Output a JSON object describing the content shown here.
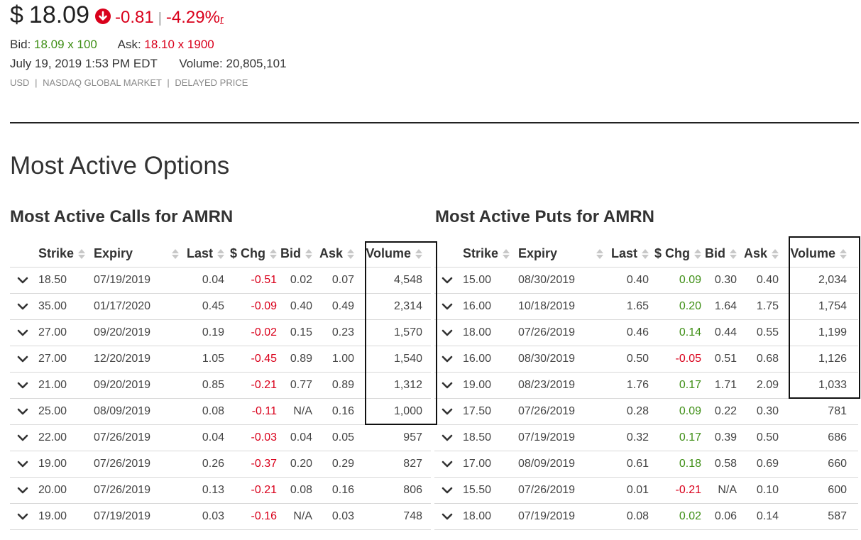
{
  "quote": {
    "currency_symbol": "$",
    "price": "18.09",
    "change": "-0.81",
    "separator": "|",
    "change_pct": "-4.29%",
    "pct_marker": "r",
    "bid_label": "Bid:",
    "bid_value": "18.09 x 100",
    "ask_label": "Ask:",
    "ask_value": "18.10 x 1900",
    "datetime": "July 19, 2019 1:53 PM EDT",
    "volume_label": "Volume:",
    "volume_value": "20,805,101",
    "meta": [
      "USD",
      "NASDAQ GLOBAL MARKET",
      "DELAYED PRICE"
    ],
    "meta_separator": "|"
  },
  "section_title": "Most Active Options",
  "columns": {
    "strike": "Strike",
    "expiry": "Expiry",
    "last": "Last",
    "chg": "$ Chg",
    "bid": "Bid",
    "ask": "Ask",
    "volume": "Volume"
  },
  "calls": {
    "title": "Most Active Calls for AMRN",
    "rows": [
      {
        "strike": "18.50",
        "expiry": "07/19/2019",
        "last": "0.04",
        "chg": "-0.51",
        "bid": "0.02",
        "ask": "0.07",
        "volume": "4,548"
      },
      {
        "strike": "35.00",
        "expiry": "01/17/2020",
        "last": "0.45",
        "chg": "-0.09",
        "bid": "0.40",
        "ask": "0.49",
        "volume": "2,314"
      },
      {
        "strike": "27.00",
        "expiry": "09/20/2019",
        "last": "0.19",
        "chg": "-0.02",
        "bid": "0.15",
        "ask": "0.23",
        "volume": "1,570"
      },
      {
        "strike": "27.00",
        "expiry": "12/20/2019",
        "last": "1.05",
        "chg": "-0.45",
        "bid": "0.89",
        "ask": "1.00",
        "volume": "1,540"
      },
      {
        "strike": "21.00",
        "expiry": "09/20/2019",
        "last": "0.85",
        "chg": "-0.21",
        "bid": "0.77",
        "ask": "0.89",
        "volume": "1,312"
      },
      {
        "strike": "25.00",
        "expiry": "08/09/2019",
        "last": "0.08",
        "chg": "-0.11",
        "bid": "N/A",
        "ask": "0.16",
        "volume": "1,000"
      },
      {
        "strike": "22.00",
        "expiry": "07/26/2019",
        "last": "0.04",
        "chg": "-0.03",
        "bid": "0.04",
        "ask": "0.05",
        "volume": "957"
      },
      {
        "strike": "19.00",
        "expiry": "07/26/2019",
        "last": "0.26",
        "chg": "-0.37",
        "bid": "0.20",
        "ask": "0.29",
        "volume": "827"
      },
      {
        "strike": "20.00",
        "expiry": "07/26/2019",
        "last": "0.13",
        "chg": "-0.21",
        "bid": "0.08",
        "ask": "0.16",
        "volume": "806"
      },
      {
        "strike": "19.00",
        "expiry": "07/19/2019",
        "last": "0.03",
        "chg": "-0.16",
        "bid": "N/A",
        "ask": "0.03",
        "volume": "748"
      }
    ]
  },
  "puts": {
    "title": "Most Active Puts for AMRN",
    "rows": [
      {
        "strike": "15.00",
        "expiry": "08/30/2019",
        "last": "0.40",
        "chg": "0.09",
        "bid": "0.30",
        "ask": "0.40",
        "volume": "2,034"
      },
      {
        "strike": "16.00",
        "expiry": "10/18/2019",
        "last": "1.65",
        "chg": "0.20",
        "bid": "1.64",
        "ask": "1.75",
        "volume": "1,754"
      },
      {
        "strike": "18.00",
        "expiry": "07/26/2019",
        "last": "0.46",
        "chg": "0.14",
        "bid": "0.44",
        "ask": "0.55",
        "volume": "1,199"
      },
      {
        "strike": "16.00",
        "expiry": "08/30/2019",
        "last": "0.50",
        "chg": "-0.05",
        "bid": "0.51",
        "ask": "0.68",
        "volume": "1,126"
      },
      {
        "strike": "19.00",
        "expiry": "08/23/2019",
        "last": "1.76",
        "chg": "0.17",
        "bid": "1.71",
        "ask": "2.09",
        "volume": "1,033"
      },
      {
        "strike": "17.50",
        "expiry": "07/26/2019",
        "last": "0.28",
        "chg": "0.09",
        "bid": "0.22",
        "ask": "0.30",
        "volume": "781"
      },
      {
        "strike": "18.50",
        "expiry": "07/19/2019",
        "last": "0.32",
        "chg": "0.17",
        "bid": "0.39",
        "ask": "0.50",
        "volume": "686"
      },
      {
        "strike": "17.00",
        "expiry": "08/09/2019",
        "last": "0.61",
        "chg": "0.18",
        "bid": "0.58",
        "ask": "0.69",
        "volume": "660"
      },
      {
        "strike": "15.50",
        "expiry": "07/26/2019",
        "last": "0.01",
        "chg": "-0.21",
        "bid": "N/A",
        "ask": "0.10",
        "volume": "600"
      },
      {
        "strike": "18.00",
        "expiry": "07/19/2019",
        "last": "0.08",
        "chg": "0.02",
        "bid": "0.06",
        "ask": "0.14",
        "volume": "587"
      }
    ]
  },
  "colors": {
    "negative": "#d9001b",
    "positive": "#3f8f16",
    "text": "#333333",
    "muted": "#8a8a8a"
  },
  "icons": {
    "price_direction": "down-arrow-circle-icon",
    "row_expand": "chevron-down-icon",
    "column_sort": "sort-icon"
  }
}
